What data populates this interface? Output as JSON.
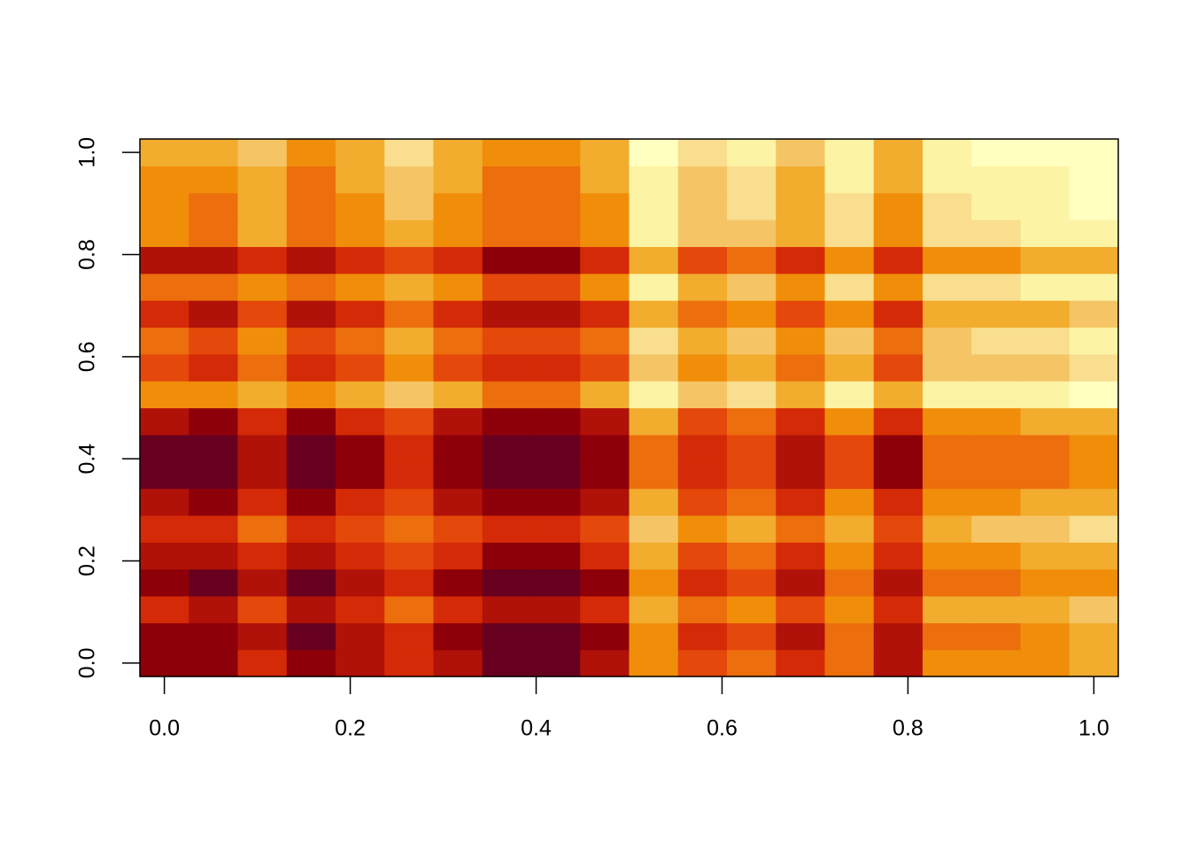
{
  "chart_data": {
    "type": "heatmap",
    "x": [
      0,
      0.05263,
      0.10526,
      0.15789,
      0.21053,
      0.26316,
      0.31579,
      0.36842,
      0.42105,
      0.47368,
      0.52632,
      0.57895,
      0.63158,
      0.68421,
      0.73684,
      0.78947,
      0.84211,
      0.89474,
      0.94737,
      1
    ],
    "y": [
      0,
      0.05263,
      0.10526,
      0.15789,
      0.21053,
      0.26316,
      0.31579,
      0.36842,
      0.42105,
      0.47368,
      0.52632,
      0.57895,
      0.63158,
      0.68421,
      0.73684,
      0.78947,
      0.84211,
      0.89474,
      0.94737,
      1
    ],
    "z": [
      [
        1,
        1,
        3,
        1,
        2,
        3,
        2,
        0,
        0,
        2,
        6,
        4,
        5,
        3,
        5,
        2,
        6,
        6,
        6,
        7
      ],
      [
        1,
        1,
        2,
        0,
        2,
        3,
        1,
        0,
        0,
        1,
        6,
        3,
        4,
        2,
        5,
        2,
        5,
        5,
        6,
        7
      ],
      [
        3,
        2,
        4,
        2,
        3,
        5,
        3,
        2,
        2,
        3,
        7,
        5,
        6,
        4,
        6,
        3,
        7,
        7,
        7,
        8
      ],
      [
        1,
        0,
        2,
        0,
        2,
        3,
        1,
        0,
        0,
        1,
        6,
        3,
        4,
        2,
        5,
        2,
        5,
        5,
        6,
        6
      ],
      [
        2,
        2,
        3,
        2,
        3,
        4,
        3,
        1,
        1,
        3,
        7,
        4,
        5,
        3,
        6,
        3,
        6,
        6,
        7,
        7
      ],
      [
        3,
        3,
        5,
        3,
        4,
        5,
        4,
        3,
        3,
        4,
        8,
        6,
        7,
        5,
        7,
        4,
        7,
        8,
        8,
        9
      ],
      [
        2,
        1,
        3,
        1,
        3,
        4,
        2,
        1,
        1,
        2,
        7,
        4,
        5,
        3,
        6,
        3,
        6,
        6,
        7,
        7
      ],
      [
        0,
        0,
        2,
        0,
        1,
        3,
        1,
        0,
        0,
        1,
        5,
        3,
        4,
        2,
        4,
        1,
        5,
        5,
        5,
        6
      ],
      [
        0,
        0,
        2,
        0,
        1,
        3,
        1,
        0,
        0,
        1,
        5,
        3,
        4,
        2,
        4,
        1,
        5,
        5,
        5,
        6
      ],
      [
        2,
        1,
        3,
        1,
        3,
        4,
        2,
        1,
        1,
        2,
        7,
        4,
        5,
        3,
        6,
        3,
        6,
        6,
        7,
        7
      ],
      [
        6,
        6,
        7,
        6,
        7,
        8,
        7,
        5,
        5,
        7,
        10,
        8,
        9,
        7,
        10,
        7,
        10,
        10,
        10,
        11
      ],
      [
        4,
        3,
        5,
        3,
        4,
        6,
        4,
        3,
        3,
        4,
        8,
        6,
        7,
        5,
        7,
        4,
        8,
        8,
        8,
        9
      ],
      [
        5,
        4,
        6,
        4,
        5,
        7,
        5,
        4,
        4,
        5,
        9,
        7,
        8,
        6,
        8,
        5,
        8,
        9,
        9,
        10
      ],
      [
        3,
        2,
        4,
        2,
        3,
        5,
        3,
        2,
        2,
        3,
        7,
        5,
        6,
        4,
        6,
        3,
        7,
        7,
        7,
        8
      ],
      [
        5,
        5,
        6,
        5,
        6,
        7,
        6,
        4,
        4,
        6,
        10,
        7,
        8,
        6,
        9,
        6,
        9,
        9,
        10,
        10
      ],
      [
        2,
        2,
        3,
        2,
        3,
        4,
        3,
        1,
        1,
        3,
        7,
        4,
        5,
        3,
        6,
        3,
        6,
        6,
        7,
        7
      ],
      [
        6,
        5,
        7,
        5,
        6,
        7,
        6,
        5,
        5,
        6,
        10,
        8,
        8,
        7,
        9,
        6,
        9,
        9,
        10,
        10
      ],
      [
        6,
        5,
        7,
        5,
        6,
        8,
        6,
        5,
        5,
        6,
        10,
        8,
        9,
        7,
        9,
        6,
        9,
        10,
        10,
        11
      ],
      [
        6,
        6,
        7,
        5,
        7,
        8,
        7,
        5,
        5,
        7,
        10,
        8,
        9,
        7,
        10,
        7,
        10,
        10,
        10,
        11
      ],
      [
        7,
        7,
        8,
        6,
        7,
        9,
        7,
        6,
        6,
        7,
        11,
        9,
        10,
        8,
        10,
        7,
        10,
        11,
        11,
        11
      ]
    ],
    "zlim": [
      0,
      11
    ],
    "colors": [
      "#67001F",
      "#8E0009",
      "#B01108",
      "#D42A07",
      "#E4480B",
      "#EC6E0C",
      "#F08E0A",
      "#F2AC2E",
      "#F5C565",
      "#F8DE8E",
      "#FDF3A5",
      "#FFFFBF"
    ],
    "xlim": [
      -0.0263,
      1.0263
    ],
    "ylim": [
      -0.0263,
      1.0263
    ],
    "xticks": [
      {
        "value": 0,
        "label": "0.0"
      },
      0.2,
      0.4,
      0.6,
      0.8,
      {
        "value": 1,
        "label": "1.0"
      }
    ],
    "yticks": [
      {
        "value": 0,
        "label": "0.0"
      },
      0.2,
      0.4,
      0.6,
      0.8,
      {
        "value": 1,
        "label": "1.0"
      }
    ]
  }
}
